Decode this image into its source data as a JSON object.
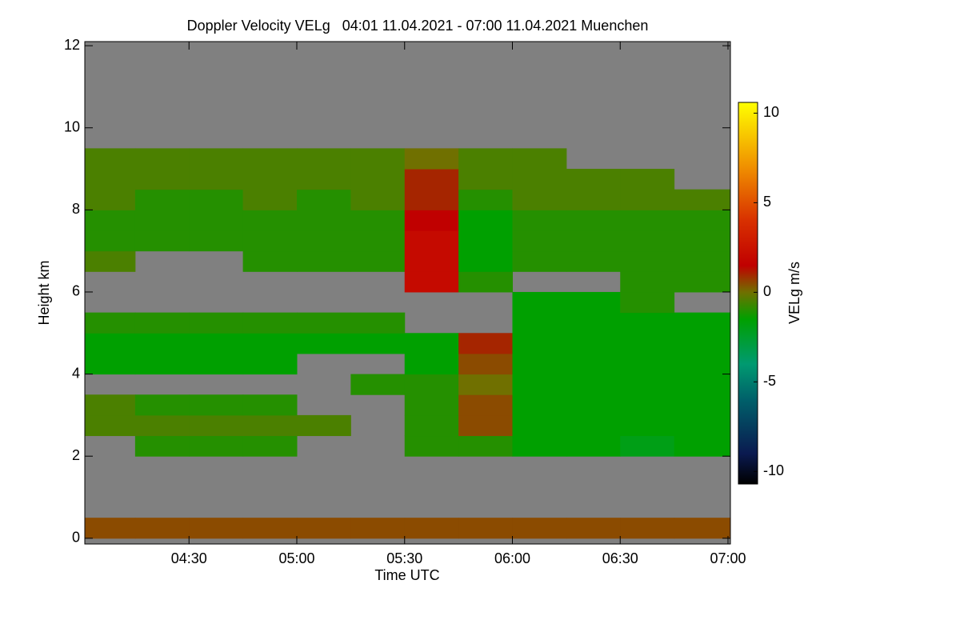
{
  "chart_data": {
    "type": "heatmap",
    "title": "Doppler Velocity VELg   04:01 11.04.2021 - 07:00 11.04.2021 Muenchen",
    "xlabel": "Time UTC",
    "ylabel": "Height km",
    "colorbar_label": "VELg m/s",
    "x": [
      4.0167,
      4.25,
      4.5,
      4.75,
      5,
      5.25,
      5.5,
      5.75,
      6,
      6.25,
      6.5,
      6.75,
      7.0111
    ],
    "y": [
      0,
      0.5,
      1,
      1.5,
      2,
      2.5,
      3,
      3.5,
      4,
      4.5,
      5,
      5.5,
      6,
      6.5,
      7,
      7.5,
      8,
      8.5,
      9,
      9.5,
      10,
      10.5,
      11,
      11.5,
      12
    ],
    "z": [
      [
        0.5,
        0.5,
        0.5,
        0.5,
        0.5,
        0.5,
        0.5,
        0.5,
        0.5,
        0.5,
        0.5,
        0.5
      ],
      [
        null,
        null,
        null,
        null,
        null,
        null,
        null,
        null,
        null,
        null,
        null,
        null
      ],
      [
        null,
        null,
        null,
        null,
        null,
        null,
        null,
        null,
        null,
        null,
        null,
        null
      ],
      [
        null,
        null,
        null,
        null,
        null,
        null,
        null,
        null,
        null,
        null,
        null,
        null
      ],
      [
        null,
        -1,
        -1,
        -1,
        null,
        null,
        -1,
        -1,
        -1.5,
        -1.5,
        -2,
        -1.5
      ],
      [
        -0.5,
        -0.5,
        -0.5,
        -0.5,
        -0.5,
        null,
        -1,
        0.5,
        -1.5,
        -1.5,
        -1.5,
        -1.5
      ],
      [
        -0.5,
        -1,
        -1,
        -1,
        null,
        null,
        -1,
        0.5,
        -1.5,
        -1.5,
        -1.5,
        -1.5
      ],
      [
        null,
        null,
        null,
        null,
        null,
        -1,
        -1,
        0,
        -1.5,
        -1.5,
        -1.5,
        -1.5
      ],
      [
        -1.5,
        -1.5,
        -1.5,
        -1.5,
        null,
        null,
        -1.5,
        0.5,
        -1.5,
        -1.5,
        -1.5,
        -1.5
      ],
      [
        -1.5,
        -1.5,
        -1.5,
        -1.5,
        -1.5,
        -1.5,
        -1.5,
        1,
        -1.5,
        -1.5,
        -1.5,
        -1.5
      ],
      [
        -1,
        -1,
        -1,
        -1,
        -1,
        -1,
        null,
        null,
        -1.5,
        -1.5,
        -1.5,
        -1.5
      ],
      [
        null,
        null,
        null,
        null,
        null,
        null,
        null,
        null,
        -1.5,
        -1.5,
        -1,
        null
      ],
      [
        null,
        null,
        null,
        null,
        null,
        null,
        2,
        -1,
        null,
        null,
        -1,
        -1
      ],
      [
        -0.5,
        null,
        null,
        -1,
        -1,
        -1,
        2,
        -1.5,
        -1,
        -1,
        -1,
        -1
      ],
      [
        -1,
        -1,
        -1,
        -1,
        -1,
        -1,
        2,
        -1.5,
        -1,
        -1,
        -1,
        -1
      ],
      [
        -1,
        -1,
        -1,
        -1,
        -1,
        -1,
        1.5,
        -1.5,
        -1,
        -1,
        -1,
        -1
      ],
      [
        -0.5,
        -1,
        -1,
        -0.5,
        -1,
        -0.5,
        1,
        -1,
        -0.5,
        -0.5,
        -0.5,
        -0.5
      ],
      [
        -0.5,
        -0.5,
        -0.5,
        -0.5,
        -0.5,
        -0.5,
        1,
        -0.5,
        -0.5,
        -0.5,
        -0.5,
        null
      ],
      [
        -0.5,
        -0.5,
        -0.5,
        -0.5,
        -0.5,
        -0.5,
        0,
        -0.5,
        -0.5,
        null,
        null,
        null
      ],
      [
        null,
        null,
        null,
        null,
        null,
        null,
        null,
        null,
        null,
        null,
        null,
        null
      ],
      [
        null,
        null,
        null,
        null,
        null,
        null,
        null,
        null,
        null,
        null,
        null,
        null
      ],
      [
        null,
        null,
        null,
        null,
        null,
        null,
        null,
        null,
        null,
        null,
        null,
        null
      ],
      [
        null,
        null,
        null,
        null,
        null,
        null,
        null,
        null,
        null,
        null,
        null,
        null
      ],
      [
        null,
        null,
        null,
        null,
        null,
        null,
        null,
        null,
        null,
        null,
        null,
        null
      ]
    ],
    "xlim": [
      4.0167,
      7.0111
    ],
    "ylim": [
      -0.14,
      12.1
    ],
    "xticks": [
      {
        "value": 4.5,
        "label": "04:30"
      },
      {
        "value": 5,
        "label": "05:00"
      },
      {
        "value": 5.5,
        "label": "05:30"
      },
      {
        "value": 6,
        "label": "06:00"
      },
      {
        "value": 6.5,
        "label": "06:30"
      },
      {
        "value": 7,
        "label": "07:00"
      }
    ],
    "yticks": [
      0,
      2,
      4,
      6,
      8,
      10,
      12
    ],
    "clim": [
      -10.7,
      10.6
    ],
    "cbticks": [
      -10,
      -5,
      0,
      5,
      10
    ],
    "colorscale": [
      [
        -10.7,
        "#000000"
      ],
      [
        -9,
        "#0a1a50"
      ],
      [
        -6,
        "#00606a"
      ],
      [
        -4,
        "#009a70"
      ],
      [
        -1.5,
        "#00a000"
      ],
      [
        0,
        "#707000"
      ],
      [
        1.5,
        "#c00000"
      ],
      [
        4,
        "#d83000"
      ],
      [
        7,
        "#f09000"
      ],
      [
        10.6,
        "#ffff00"
      ]
    ],
    "missing_color": "#808080"
  }
}
